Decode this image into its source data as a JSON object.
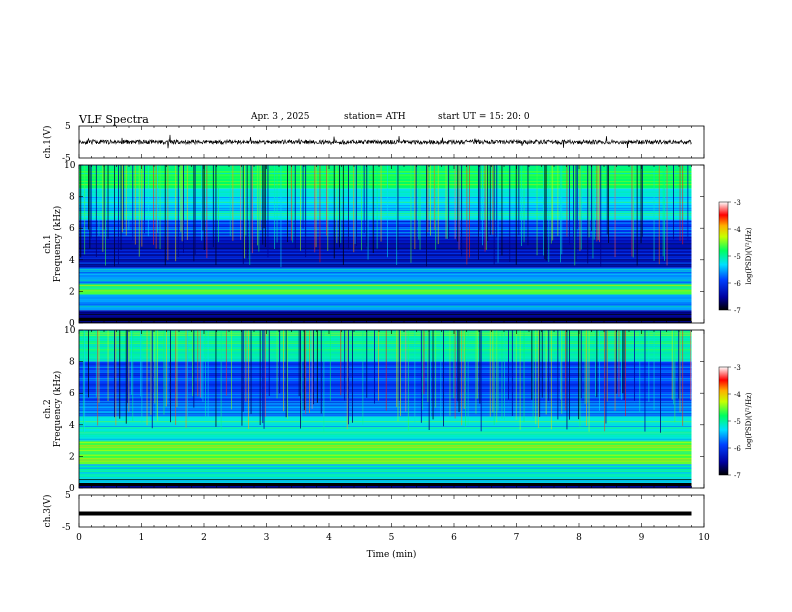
{
  "header": {
    "title": "VLF  Spectra",
    "date": "Apr. 3   , 2025",
    "station": "station= ATH",
    "start": "start  UT  =    15: 20: 0"
  },
  "chart_data": [
    {
      "type": "line",
      "panel": "ch1-waveform",
      "ylabel": "ch.1(V)",
      "ylim": [
        -5,
        5
      ],
      "yticks": [
        "5",
        "-5"
      ],
      "xlim": [
        0,
        10
      ],
      "description_values": {
        "x": [
          0,
          9.8
        ],
        "y_baseline": 0,
        "noise_amplitude": 1.2
      }
    },
    {
      "type": "heatmap",
      "panel": "ch1-spectrogram",
      "ylabel_top": "ch.1",
      "ylabel": "Frequency  (kHz)",
      "ylim": [
        0,
        10
      ],
      "yticks": [
        "10",
        "8",
        "6",
        "4",
        "2",
        "0"
      ],
      "xlim": [
        0,
        10
      ],
      "x_data_end": 9.8,
      "colorbar": {
        "label": "log(PSD)(V²/Hz)",
        "range": [
          -7,
          -3
        ],
        "ticks": [
          "-3",
          "-4",
          "-5",
          "-6",
          "-7"
        ]
      },
      "bands_kHz": [
        {
          "from": 8.5,
          "to": 10,
          "level": -4.8
        },
        {
          "from": 6.5,
          "to": 8.5,
          "level": -5.3
        },
        {
          "from": 5.5,
          "to": 6.5,
          "level": -5.9
        },
        {
          "from": 3.5,
          "to": 5.5,
          "level": -6.3
        },
        {
          "from": 2.5,
          "to": 3.5,
          "level": -5.6
        },
        {
          "from": 1.8,
          "to": 2.5,
          "level": -4.7
        },
        {
          "from": 0.8,
          "to": 1.8,
          "level": -5.6
        },
        {
          "from": 0,
          "to": 0.8,
          "level": -6.6
        }
      ]
    },
    {
      "type": "heatmap",
      "panel": "ch2-spectrogram",
      "ylabel_top": "ch.2",
      "ylabel": "Frequency  (kHz)",
      "ylim": [
        0,
        10
      ],
      "yticks": [
        "10",
        "8",
        "6",
        "4",
        "2",
        "0"
      ],
      "xlim": [
        0,
        10
      ],
      "x_data_end": 9.8,
      "colorbar": {
        "label": "log(PSD)(V²/Hz)",
        "range": [
          -7,
          -3
        ],
        "ticks": [
          "-3",
          "-4",
          "-5",
          "-6",
          "-7"
        ]
      },
      "bands_kHz": [
        {
          "from": 8.0,
          "to": 10,
          "level": -5.0
        },
        {
          "from": 5.5,
          "to": 8.0,
          "level": -5.9
        },
        {
          "from": 4.5,
          "to": 5.5,
          "level": -5.6
        },
        {
          "from": 3.0,
          "to": 4.5,
          "level": -5.2
        },
        {
          "from": 1.5,
          "to": 3.0,
          "level": -4.6
        },
        {
          "from": 0.3,
          "to": 1.5,
          "level": -5.2
        },
        {
          "from": 0,
          "to": 0.3,
          "level": -6.6
        }
      ]
    },
    {
      "type": "line",
      "panel": "ch3-waveform",
      "ylabel": "ch.3(V)",
      "ylim": [
        -5,
        5
      ],
      "yticks": [
        "5",
        "-5"
      ],
      "xlabel": "Time  (min)",
      "xlim": [
        0,
        10
      ],
      "xticks": [
        "0",
        "1",
        "2",
        "3",
        "4",
        "5",
        "6",
        "7",
        "8",
        "9",
        "10"
      ],
      "description_values": {
        "x": [
          0,
          9.8
        ],
        "y_baseline": 0
      }
    }
  ]
}
